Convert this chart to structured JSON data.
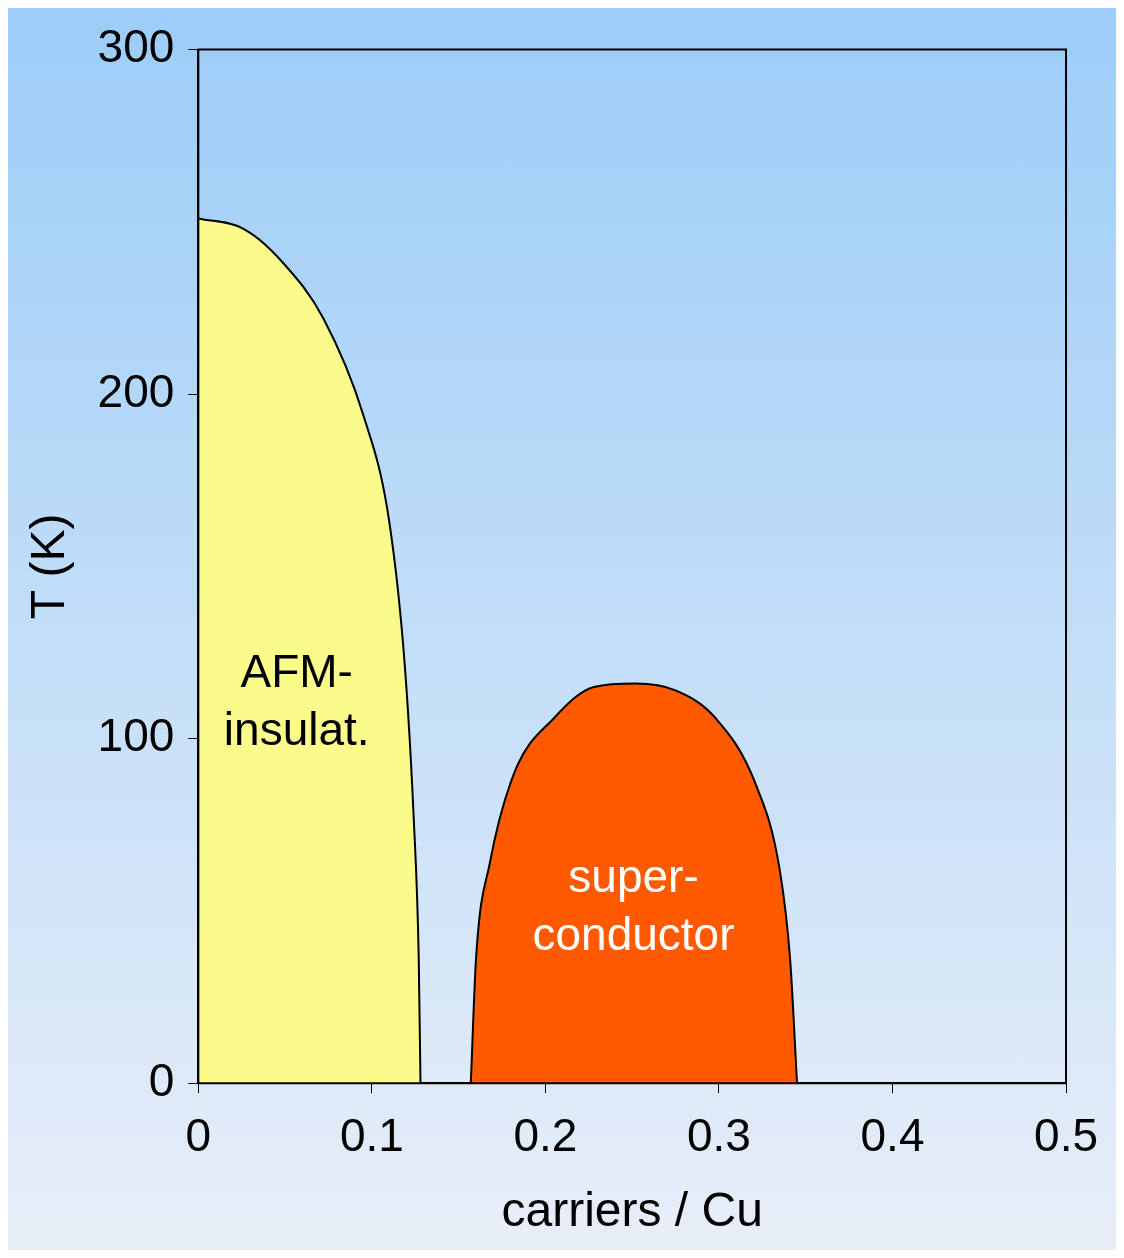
{
  "chart_data": {
    "type": "area",
    "xlabel": "carriers / Cu",
    "ylabel": "T (K)",
    "xlim": [
      0,
      0.5
    ],
    "xticks": [
      0,
      0.1,
      0.2,
      0.3,
      0.4,
      0.5
    ],
    "ylim": [
      0,
      300
    ],
    "yticks": [
      0,
      100,
      200,
      300
    ],
    "grid": false,
    "legend": false,
    "series": [
      {
        "color": "#fbfb8c",
        "x": [
          0,
          0.026,
          0.049,
          0.072,
          0.095,
          0.11,
          0.119,
          0.124,
          0.127,
          0.128
        ],
        "values": [
          251,
          248,
          238,
          222,
          194,
          163,
          121,
          78,
          36,
          0
        ]
      },
      {
        "color": "#ff5a00",
        "x": [
          0.157,
          0.16,
          0.168,
          0.182,
          0.205,
          0.228,
          0.252,
          0.275,
          0.298,
          0.321,
          0.335,
          0.341,
          0.345
        ],
        "values": [
          0,
          36,
          64,
          90,
          106,
          115,
          116,
          114,
          106,
          87,
          62,
          36,
          0
        ]
      }
    ],
    "annotations": [
      "AFM-\ninsulat.",
      "super-\nconductor"
    ]
  }
}
